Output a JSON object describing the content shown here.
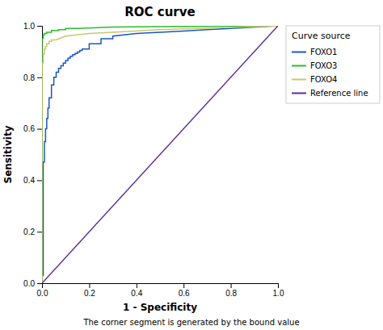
{
  "chart_data": {
    "type": "line",
    "title": "ROC curve",
    "xlabel": "1 - Specificity",
    "ylabel": "Sensitivity",
    "footnote": "The corner segment is generated by the bound value",
    "legend_title": "Curve source",
    "legend": "right",
    "grid": false,
    "xlim": [
      0.0,
      1.0
    ],
    "ylim": [
      0.0,
      1.0
    ],
    "xticks": [
      {
        "value": 0.0,
        "label": "0.0"
      },
      0.2,
      0.4,
      0.6,
      0.8,
      {
        "value": 1.0,
        "label": "1.0"
      }
    ],
    "yticks": [
      {
        "value": 0.0,
        "label": "0.0"
      },
      0.2,
      0.4,
      0.6,
      0.8,
      {
        "value": 1.0,
        "label": "1.0"
      }
    ],
    "series": [
      {
        "name": "FOXO1",
        "color": "#1a56c4",
        "x": [
          0.0,
          0.005,
          0.005,
          0.01,
          0.01,
          0.015,
          0.015,
          0.02,
          0.02,
          0.025,
          0.025,
          0.03,
          0.03,
          0.04,
          0.04,
          0.05,
          0.05,
          0.06,
          0.06,
          0.07,
          0.07,
          0.08,
          0.08,
          0.09,
          0.09,
          0.1,
          0.1,
          0.11,
          0.11,
          0.12,
          0.12,
          0.13,
          0.13,
          0.14,
          0.14,
          0.15,
          0.15,
          0.16,
          0.16,
          0.17,
          0.17,
          0.2,
          0.2,
          0.25,
          0.25,
          0.3,
          0.3,
          0.4,
          0.5,
          0.6,
          0.7,
          0.8,
          1.0
        ],
        "values": [
          0.03,
          0.03,
          0.47,
          0.47,
          0.55,
          0.55,
          0.6,
          0.6,
          0.64,
          0.64,
          0.68,
          0.68,
          0.72,
          0.72,
          0.77,
          0.77,
          0.8,
          0.8,
          0.82,
          0.82,
          0.835,
          0.835,
          0.845,
          0.845,
          0.855,
          0.855,
          0.865,
          0.865,
          0.875,
          0.875,
          0.882,
          0.882,
          0.888,
          0.888,
          0.893,
          0.893,
          0.898,
          0.898,
          0.904,
          0.904,
          0.91,
          0.91,
          0.93,
          0.93,
          0.95,
          0.95,
          0.96,
          0.97,
          0.975,
          0.98,
          0.985,
          0.99,
          1.0
        ]
      },
      {
        "name": "FOXO3",
        "color": "#2dbd2d",
        "x": [
          0.0,
          0.0,
          0.005,
          0.005,
          0.01,
          0.01,
          0.02,
          0.02,
          0.04,
          0.04,
          0.07,
          0.07,
          0.1,
          0.1,
          0.15,
          0.3,
          0.5,
          1.0
        ],
        "values": [
          0.0,
          0.95,
          0.95,
          0.965,
          0.965,
          0.97,
          0.97,
          0.975,
          0.975,
          0.982,
          0.982,
          0.985,
          0.985,
          0.99,
          0.99,
          0.995,
          0.997,
          1.0
        ]
      },
      {
        "name": "FOXO4",
        "color": "#c8c870",
        "x": [
          0.0,
          0.0,
          0.005,
          0.005,
          0.01,
          0.01,
          0.015,
          0.015,
          0.02,
          0.02,
          0.03,
          0.03,
          0.04,
          0.04,
          0.06,
          0.1,
          0.2,
          0.3,
          0.5,
          1.0
        ],
        "values": [
          0.0,
          0.855,
          0.855,
          0.89,
          0.89,
          0.91,
          0.91,
          0.92,
          0.92,
          0.93,
          0.93,
          0.94,
          0.94,
          0.945,
          0.945,
          0.96,
          0.97,
          0.975,
          0.985,
          1.0
        ]
      },
      {
        "name": "Reference line",
        "color": "#5a2d9c",
        "x": [
          0,
          1
        ],
        "values": [
          0,
          1
        ]
      }
    ]
  }
}
